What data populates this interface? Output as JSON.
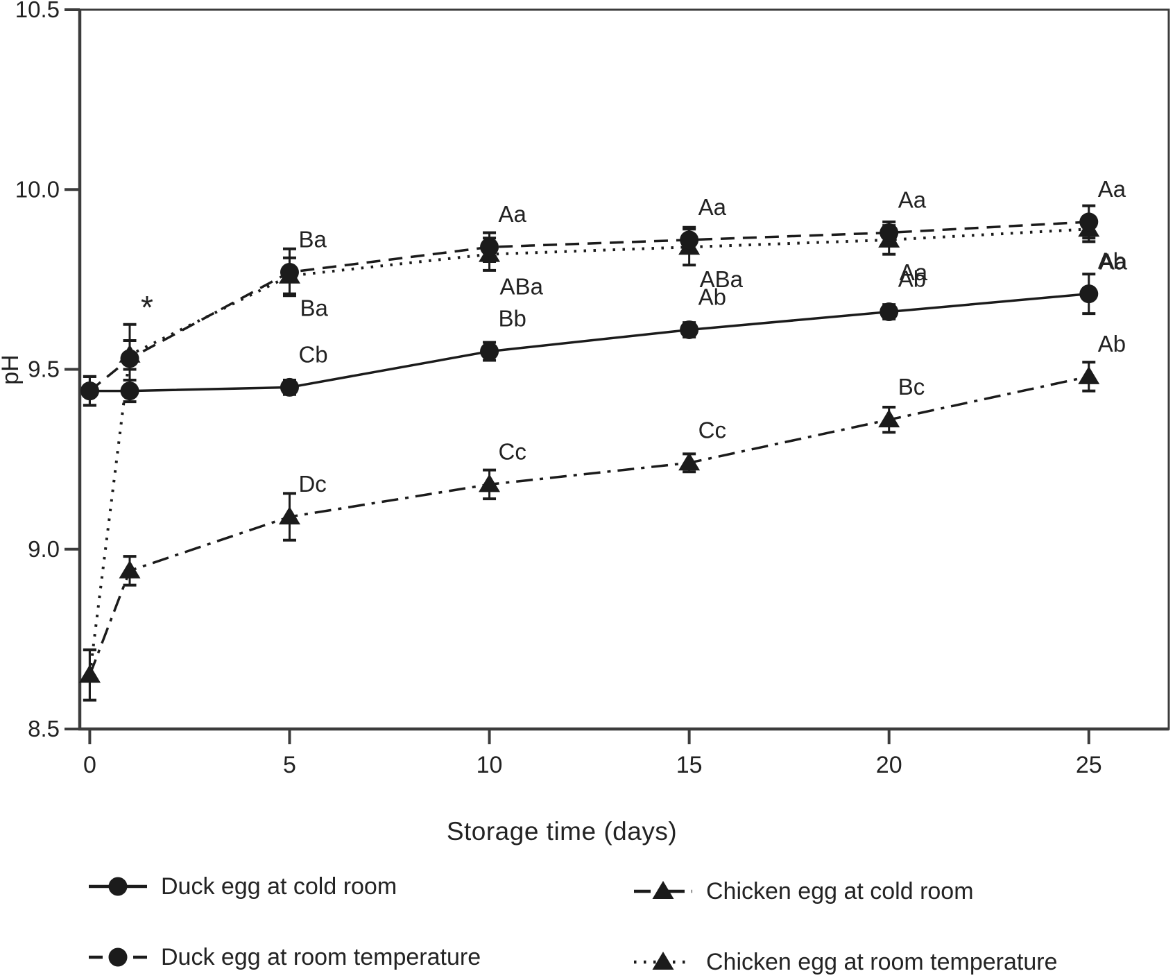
{
  "figure": {
    "background": "#ffffff",
    "ink_color": "#1b1b1b",
    "axis_color": "#3c3c3c"
  },
  "chart_data": {
    "type": "line",
    "title": "",
    "xlabel": "Storage time (days)",
    "ylabel": "pH",
    "x": [
      0,
      1,
      5,
      10,
      15,
      20,
      25
    ],
    "xlim": [
      -0.25,
      27
    ],
    "ylim": [
      8.5,
      10.5
    ],
    "x_ticks": [
      0,
      5,
      10,
      15,
      20,
      25
    ],
    "x_tick_labels": [
      "0",
      "5",
      "10",
      "15",
      "20",
      "25"
    ],
    "y_ticks": [
      8.5,
      9.0,
      9.5,
      10.0,
      10.5
    ],
    "y_tick_labels": [
      "8.5",
      "9.0",
      "9.5",
      "10.0",
      "10.5"
    ],
    "grid": false,
    "frame": true,
    "legend_position": "bottom",
    "series": [
      {
        "name": "Duck egg at cold room",
        "marker": "circle",
        "line_style": "solid",
        "label_side": "above",
        "values": [
          9.44,
          9.44,
          9.45,
          9.55,
          9.61,
          9.66,
          9.71
        ],
        "errors": [
          0.04,
          0.03,
          0.02,
          0.025,
          0.02,
          0.02,
          0.055
        ],
        "point_labels": [
          "",
          "",
          "Cb",
          "Bb",
          "Ab",
          "Ab",
          "Ab"
        ]
      },
      {
        "name": "Duck egg at room temperature",
        "marker": "circle",
        "line_style": "dashed",
        "label_side": "above",
        "values": [
          9.44,
          9.53,
          9.77,
          9.84,
          9.86,
          9.88,
          9.91
        ],
        "errors": [
          0.04,
          0.095,
          0.065,
          0.04,
          0.035,
          0.03,
          0.045
        ],
        "point_labels": [
          "",
          "*",
          "Ba",
          "Aa",
          "Aa",
          "Aa",
          "Aa"
        ]
      },
      {
        "name": "Chicken egg at cold room",
        "marker": "triangle",
        "line_style": "dashdot",
        "label_side": "above",
        "values": [
          8.65,
          8.94,
          9.09,
          9.18,
          9.24,
          9.36,
          9.48
        ],
        "errors": [
          0.07,
          0.04,
          0.065,
          0.04,
          0.025,
          0.035,
          0.04
        ],
        "point_labels": [
          "",
          "",
          "Dc",
          "Cc",
          "Cc",
          "Bc",
          "Ab"
        ]
      },
      {
        "name": "Chicken egg at room temperature",
        "marker": "triangle",
        "line_style": "dotted",
        "label_side": "below",
        "values": [
          8.65,
          9.54,
          9.76,
          9.82,
          9.84,
          9.86,
          9.89
        ],
        "errors": [
          0.07,
          0.04,
          0.05,
          0.045,
          0.05,
          0.04,
          0.035
        ],
        "point_labels": [
          "",
          "",
          "Ba",
          "ABa",
          "ABa",
          "Aa",
          "Aa"
        ]
      }
    ]
  },
  "legend": {
    "items": [
      {
        "label": "Duck egg at cold room"
      },
      {
        "label": "Duck egg at room temperature"
      },
      {
        "label": "Chicken egg at cold room"
      },
      {
        "label": "Chicken egg at room temperature"
      }
    ]
  }
}
